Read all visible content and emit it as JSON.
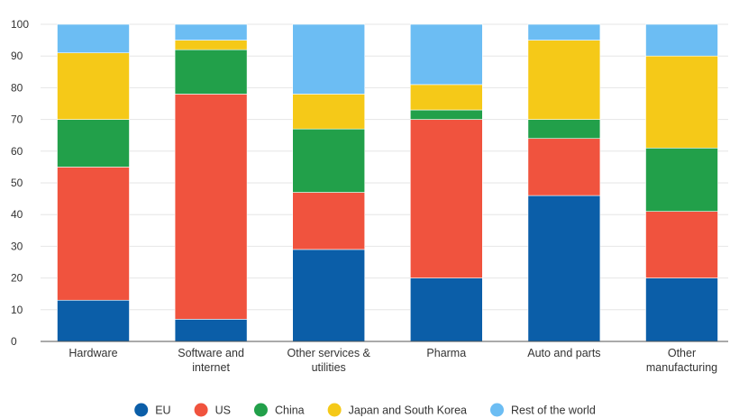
{
  "chart_data": {
    "type": "bar",
    "stacked": true,
    "categories": [
      [
        "Hardware"
      ],
      [
        "Software and",
        "internet"
      ],
      [
        "Other services &",
        "utilities"
      ],
      [
        "Pharma"
      ],
      [
        "Auto and parts"
      ],
      [
        "Other",
        "manufacturing"
      ]
    ],
    "series": [
      {
        "name": "EU",
        "color": "#0b5ea8",
        "values": [
          13,
          7,
          29,
          20,
          46,
          20
        ]
      },
      {
        "name": "US",
        "color": "#f0533e",
        "values": [
          42,
          71,
          18,
          50,
          18,
          21
        ]
      },
      {
        "name": "China",
        "color": "#22a04a",
        "values": [
          15,
          14,
          20,
          3,
          6,
          20
        ]
      },
      {
        "name": "Japan and South Korea",
        "color": "#f5c918",
        "values": [
          21,
          3,
          11,
          8,
          25,
          29
        ]
      },
      {
        "name": "Rest of the world",
        "color": "#6cbdf3",
        "values": [
          9,
          5,
          22,
          19,
          5,
          10
        ]
      }
    ],
    "yticks": [
      0,
      10,
      20,
      30,
      40,
      50,
      60,
      70,
      80,
      90,
      100
    ],
    "ylim": [
      0,
      100
    ],
    "grid": true,
    "legend": "bottom",
    "title": "",
    "xlabel": "",
    "ylabel": ""
  }
}
